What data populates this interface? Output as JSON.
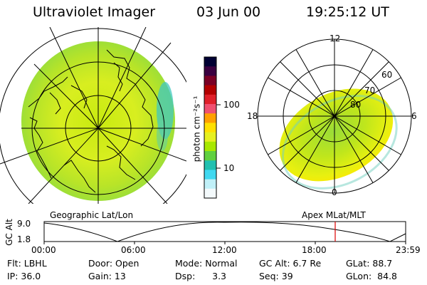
{
  "header": {
    "title": "Ultraviolet Imager",
    "date": "03 Jun 00",
    "time": "19:25:12 UT"
  },
  "colorbar": {
    "label": "photon cm⁻²s⁻¹",
    "ticks": [
      "100",
      "10"
    ],
    "colors": [
      "#000033",
      "#3a0040",
      "#7a0025",
      "#b30000",
      "#e0202a",
      "#f05070",
      "#ffa000",
      "#ffe000",
      "#e6f020",
      "#a8e800",
      "#60d040",
      "#20c0b0",
      "#40d8f0",
      "#c0f0f8",
      "#f4fafc"
    ]
  },
  "left_map": {
    "caption": "Geographic Lat/Lon"
  },
  "right_map": {
    "caption": "Apex MLat/MLT",
    "mlt_labels": {
      "top": "12",
      "left": "18",
      "right": "6",
      "bottom": "0"
    },
    "lat_labels": [
      "60",
      "70",
      "80"
    ]
  },
  "altitude_plot": {
    "ylabel": "GC Alt",
    "yticks": [
      "9.0",
      "1.8"
    ],
    "xticks": [
      "00:00",
      "06:00",
      "12:00",
      "18:00",
      "23:59"
    ],
    "marker_color": "#dd0000"
  },
  "info_rows": [
    [
      "Flt: LBHL",
      "Door: Open",
      "Mode: Normal",
      "GC Alt: 6.7 Re",
      "GLat: 88.7"
    ],
    [
      "IP: 36.0",
      "Gain: 13",
      "Dsp:      3.3",
      "Seq: 39",
      "GLon:  84.8"
    ]
  ]
}
